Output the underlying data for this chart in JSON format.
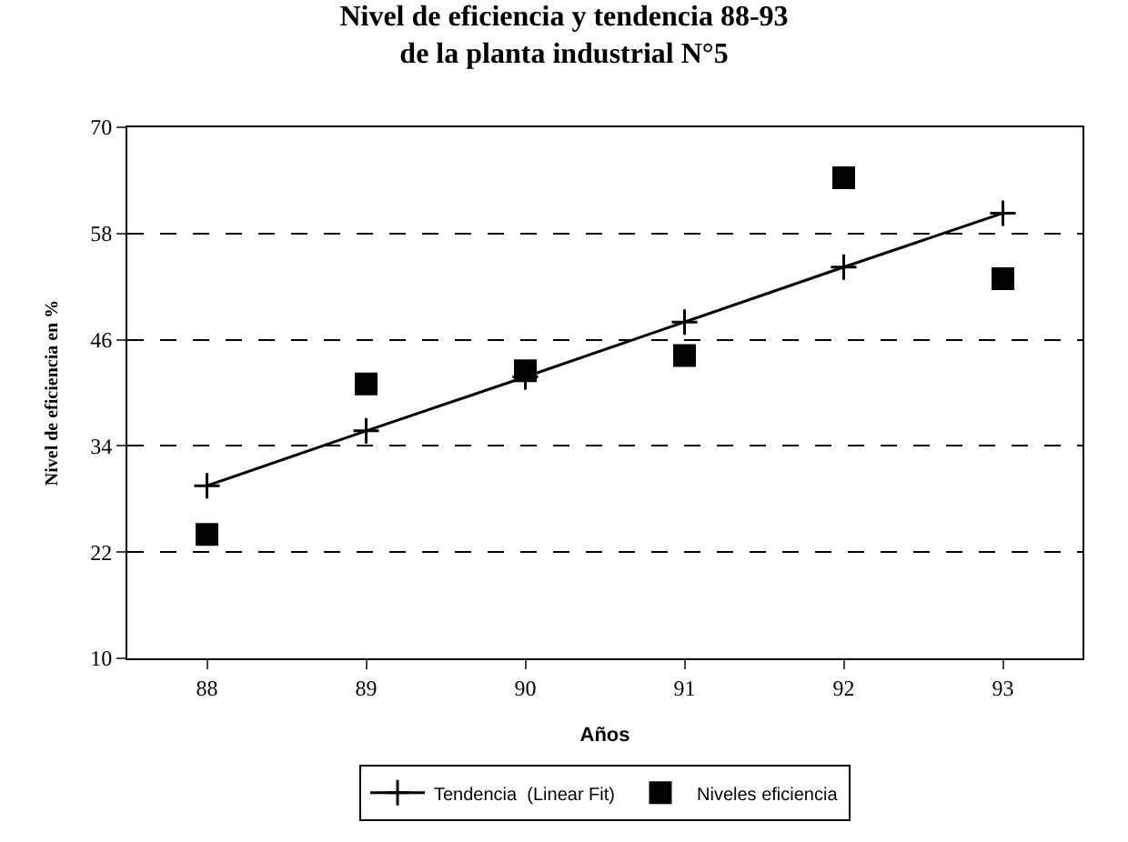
{
  "chart_data": {
    "type": "scatter",
    "title": "Nivel de eficiencia y tendencia 88-93\nde la planta industrial N°5",
    "xlabel": "Años",
    "ylabel": "Nivel de eficiencia en %",
    "x": [
      88,
      89,
      90,
      91,
      92,
      93
    ],
    "series": [
      {
        "name": "Tendencia  (Linear Fit)",
        "type": "line",
        "marker": "cross",
        "line_style": "solid",
        "color": "#000000",
        "values": [
          29.5,
          35.7,
          41.8,
          48.0,
          54.2,
          60.3
        ]
      },
      {
        "name": "Niveles eficiencia",
        "marker": "square",
        "color": "#000000",
        "values": [
          24.0,
          41.0,
          42.5,
          44.2,
          64.3,
          52.9
        ]
      }
    ],
    "xlim": [
      87.5,
      93.5
    ],
    "xticks": [
      88,
      89,
      90,
      91,
      92,
      93
    ],
    "ylim": [
      10,
      70
    ],
    "yticks": [
      10,
      22,
      34,
      46,
      58,
      70
    ],
    "grid": "y",
    "legend": "bottom"
  }
}
